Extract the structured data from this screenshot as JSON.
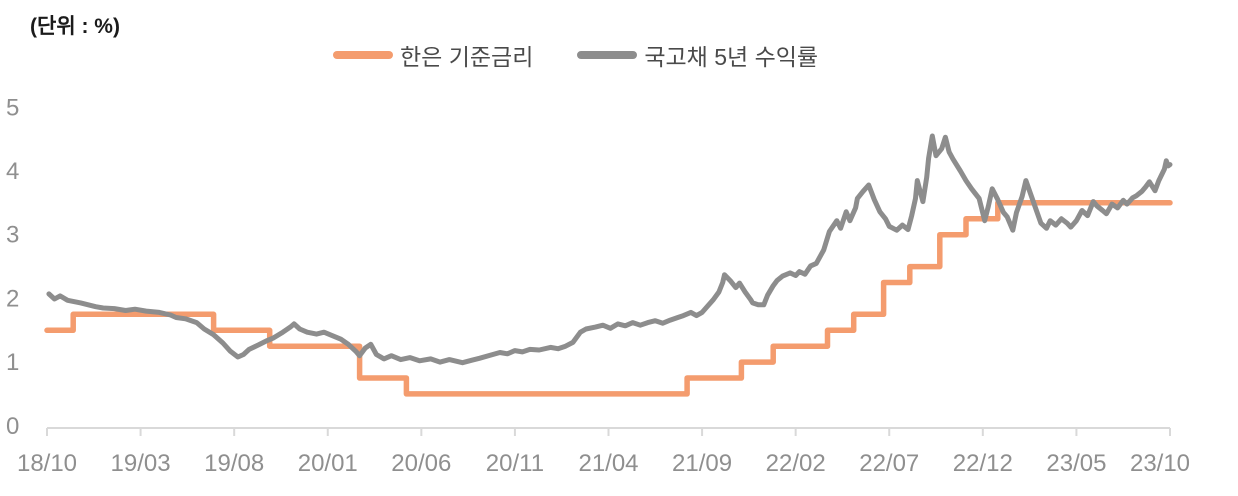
{
  "unit_label": "(단위 : %)",
  "chart_data": {
    "type": "line",
    "title": "",
    "unit_label": "(단위 : %)",
    "x_axis_span": "2018/10 - 2023/10 (monthly)",
    "x_tick_labels": [
      "18/10",
      "19/03",
      "19/08",
      "20/01",
      "20/06",
      "20/11",
      "21/04",
      "21/09",
      "22/02",
      "22/07",
      "22/12",
      "23/05",
      "23/10"
    ],
    "x_tick_months": [
      0,
      5,
      10,
      15,
      20,
      25,
      30,
      35,
      40,
      45,
      50,
      55,
      60
    ],
    "y_tick_labels": [
      "0",
      "1",
      "2",
      "3",
      "4",
      "5"
    ],
    "y_ticks": [
      0,
      1,
      2,
      3,
      4,
      5
    ],
    "ylim": [
      0,
      5
    ],
    "grid": false,
    "legend_position": "top-center",
    "axis_color": "#D9D9D9",
    "tick_label_color": "#8F8F8F",
    "series": [
      {
        "name": "한은 기준금리",
        "color": "#F49C6E",
        "style": "step",
        "stroke_width": 5.5,
        "points": [
          [
            0,
            1.5
          ],
          [
            1.4,
            1.5
          ],
          [
            1.4,
            1.75
          ],
          [
            8.9,
            1.75
          ],
          [
            8.9,
            1.5
          ],
          [
            11.9,
            1.5
          ],
          [
            11.9,
            1.25
          ],
          [
            16.7,
            1.25
          ],
          [
            16.7,
            0.75
          ],
          [
            19.2,
            0.75
          ],
          [
            19.2,
            0.5
          ],
          [
            34.2,
            0.5
          ],
          [
            34.2,
            0.75
          ],
          [
            37.1,
            0.75
          ],
          [
            37.1,
            1.0
          ],
          [
            38.8,
            1.0
          ],
          [
            38.8,
            1.25
          ],
          [
            41.7,
            1.25
          ],
          [
            41.7,
            1.5
          ],
          [
            43.1,
            1.5
          ],
          [
            43.1,
            1.75
          ],
          [
            44.7,
            1.75
          ],
          [
            44.7,
            2.25
          ],
          [
            46.1,
            2.25
          ],
          [
            46.1,
            2.5
          ],
          [
            47.7,
            2.5
          ],
          [
            47.7,
            3.0
          ],
          [
            49.1,
            3.0
          ],
          [
            49.1,
            3.25
          ],
          [
            50.8,
            3.25
          ],
          [
            50.8,
            3.5
          ],
          [
            60,
            3.5
          ]
        ]
      },
      {
        "name": "국고채 5년 수익률",
        "color": "#8D8D8D",
        "style": "line",
        "stroke_width": 5,
        "points": [
          [
            0.1,
            2.07
          ],
          [
            0.4,
            1.99
          ],
          [
            0.7,
            2.04
          ],
          [
            1.1,
            1.97
          ],
          [
            1.8,
            1.93
          ],
          [
            2.6,
            1.87
          ],
          [
            3.0,
            1.85
          ],
          [
            3.6,
            1.84
          ],
          [
            4.2,
            1.81
          ],
          [
            4.7,
            1.83
          ],
          [
            5.3,
            1.8
          ],
          [
            6.0,
            1.78
          ],
          [
            6.6,
            1.74
          ],
          [
            6.9,
            1.7
          ],
          [
            7.4,
            1.68
          ],
          [
            8.0,
            1.62
          ],
          [
            8.4,
            1.52
          ],
          [
            8.9,
            1.43
          ],
          [
            9.4,
            1.3
          ],
          [
            9.8,
            1.17
          ],
          [
            10.2,
            1.08
          ],
          [
            10.5,
            1.12
          ],
          [
            10.8,
            1.2
          ],
          [
            11.3,
            1.27
          ],
          [
            11.7,
            1.33
          ],
          [
            12.1,
            1.38
          ],
          [
            12.6,
            1.47
          ],
          [
            13.0,
            1.55
          ],
          [
            13.2,
            1.6
          ],
          [
            13.5,
            1.52
          ],
          [
            13.9,
            1.47
          ],
          [
            14.4,
            1.44
          ],
          [
            14.8,
            1.47
          ],
          [
            15.2,
            1.42
          ],
          [
            15.7,
            1.36
          ],
          [
            16.1,
            1.28
          ],
          [
            16.5,
            1.17
          ],
          [
            16.7,
            1.1
          ],
          [
            17.0,
            1.22
          ],
          [
            17.3,
            1.28
          ],
          [
            17.6,
            1.12
          ],
          [
            18.0,
            1.05
          ],
          [
            18.4,
            1.1
          ],
          [
            18.9,
            1.04
          ],
          [
            19.4,
            1.07
          ],
          [
            19.9,
            1.02
          ],
          [
            20.5,
            1.05
          ],
          [
            21.0,
            1.0
          ],
          [
            21.5,
            1.04
          ],
          [
            22.2,
            0.99
          ],
          [
            22.7,
            1.03
          ],
          [
            23.1,
            1.06
          ],
          [
            23.7,
            1.11
          ],
          [
            24.2,
            1.15
          ],
          [
            24.6,
            1.13
          ],
          [
            25.0,
            1.18
          ],
          [
            25.4,
            1.16
          ],
          [
            25.8,
            1.2
          ],
          [
            26.3,
            1.19
          ],
          [
            26.9,
            1.23
          ],
          [
            27.3,
            1.21
          ],
          [
            27.7,
            1.25
          ],
          [
            28.1,
            1.31
          ],
          [
            28.5,
            1.47
          ],
          [
            28.8,
            1.52
          ],
          [
            29.3,
            1.55
          ],
          [
            29.7,
            1.58
          ],
          [
            30.1,
            1.53
          ],
          [
            30.5,
            1.6
          ],
          [
            30.9,
            1.57
          ],
          [
            31.3,
            1.62
          ],
          [
            31.7,
            1.58
          ],
          [
            32.1,
            1.62
          ],
          [
            32.5,
            1.65
          ],
          [
            32.9,
            1.61
          ],
          [
            33.3,
            1.66
          ],
          [
            33.7,
            1.7
          ],
          [
            34.0,
            1.73
          ],
          [
            34.4,
            1.78
          ],
          [
            34.7,
            1.73
          ],
          [
            35.0,
            1.78
          ],
          [
            35.3,
            1.88
          ],
          [
            35.6,
            1.98
          ],
          [
            35.9,
            2.1
          ],
          [
            36.1,
            2.25
          ],
          [
            36.2,
            2.37
          ],
          [
            36.5,
            2.28
          ],
          [
            36.8,
            2.17
          ],
          [
            37.0,
            2.24
          ],
          [
            37.3,
            2.1
          ],
          [
            37.6,
            1.98
          ],
          [
            37.7,
            1.93
          ],
          [
            38.0,
            1.9
          ],
          [
            38.3,
            1.9
          ],
          [
            38.5,
            2.05
          ],
          [
            38.8,
            2.2
          ],
          [
            39.0,
            2.28
          ],
          [
            39.3,
            2.35
          ],
          [
            39.7,
            2.4
          ],
          [
            40.0,
            2.36
          ],
          [
            40.2,
            2.42
          ],
          [
            40.5,
            2.38
          ],
          [
            40.8,
            2.51
          ],
          [
            41.1,
            2.55
          ],
          [
            41.5,
            2.76
          ],
          [
            41.8,
            3.05
          ],
          [
            42.2,
            3.22
          ],
          [
            42.4,
            3.1
          ],
          [
            42.7,
            3.36
          ],
          [
            42.9,
            3.22
          ],
          [
            43.2,
            3.42
          ],
          [
            43.3,
            3.57
          ],
          [
            43.6,
            3.68
          ],
          [
            43.9,
            3.78
          ],
          [
            44.2,
            3.55
          ],
          [
            44.5,
            3.36
          ],
          [
            44.8,
            3.25
          ],
          [
            45.0,
            3.13
          ],
          [
            45.4,
            3.07
          ],
          [
            45.7,
            3.15
          ],
          [
            46.0,
            3.08
          ],
          [
            46.2,
            3.3
          ],
          [
            46.4,
            3.57
          ],
          [
            46.5,
            3.85
          ],
          [
            46.8,
            3.52
          ],
          [
            47.0,
            3.9
          ],
          [
            47.1,
            4.2
          ],
          [
            47.3,
            4.55
          ],
          [
            47.5,
            4.24
          ],
          [
            47.8,
            4.35
          ],
          [
            48.0,
            4.53
          ],
          [
            48.2,
            4.3
          ],
          [
            48.4,
            4.19
          ],
          [
            48.8,
            4.0
          ],
          [
            49.1,
            3.85
          ],
          [
            49.4,
            3.72
          ],
          [
            49.8,
            3.57
          ],
          [
            50.1,
            3.22
          ],
          [
            50.3,
            3.45
          ],
          [
            50.5,
            3.72
          ],
          [
            50.8,
            3.55
          ],
          [
            51.1,
            3.35
          ],
          [
            51.3,
            3.28
          ],
          [
            51.6,
            3.07
          ],
          [
            51.8,
            3.35
          ],
          [
            52.1,
            3.6
          ],
          [
            52.3,
            3.85
          ],
          [
            52.6,
            3.6
          ],
          [
            52.9,
            3.35
          ],
          [
            53.1,
            3.18
          ],
          [
            53.4,
            3.1
          ],
          [
            53.6,
            3.22
          ],
          [
            53.9,
            3.15
          ],
          [
            54.2,
            3.25
          ],
          [
            54.5,
            3.18
          ],
          [
            54.7,
            3.12
          ],
          [
            55.0,
            3.22
          ],
          [
            55.3,
            3.38
          ],
          [
            55.6,
            3.3
          ],
          [
            55.9,
            3.52
          ],
          [
            56.1,
            3.45
          ],
          [
            56.4,
            3.38
          ],
          [
            56.6,
            3.33
          ],
          [
            56.9,
            3.48
          ],
          [
            57.2,
            3.42
          ],
          [
            57.5,
            3.54
          ],
          [
            57.7,
            3.48
          ],
          [
            58.0,
            3.58
          ],
          [
            58.2,
            3.61
          ],
          [
            58.5,
            3.68
          ],
          [
            58.7,
            3.75
          ],
          [
            58.9,
            3.83
          ],
          [
            59.2,
            3.69
          ],
          [
            59.4,
            3.85
          ],
          [
            59.7,
            4.03
          ],
          [
            59.8,
            4.16
          ],
          [
            59.9,
            4.08
          ],
          [
            60.0,
            4.1
          ]
        ]
      }
    ]
  }
}
